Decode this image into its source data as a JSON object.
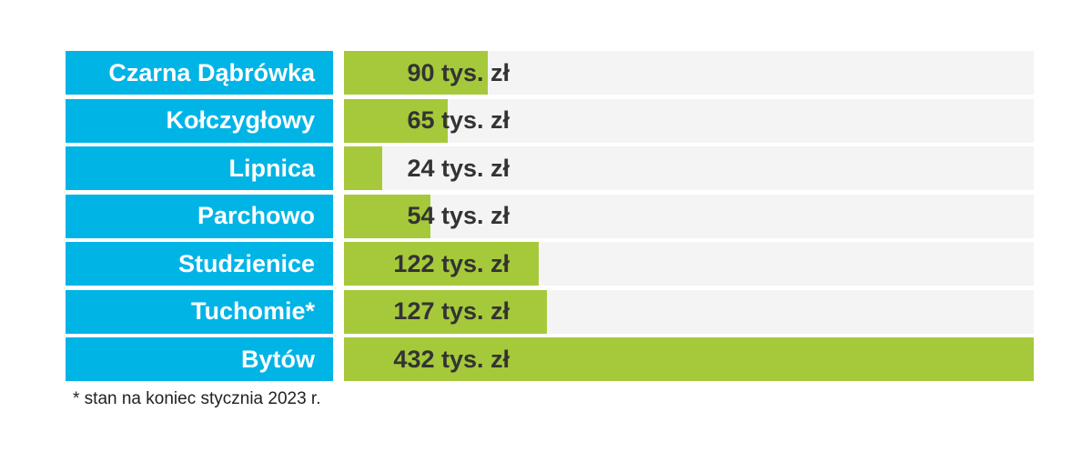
{
  "colors": {
    "category_box": "#00b4e6",
    "bar": "#a5c93a",
    "track": "#f4f4f4",
    "label_text": "#333333"
  },
  "chart_data": {
    "type": "bar",
    "orientation": "horizontal",
    "title": "",
    "xlabel": "",
    "ylabel": "",
    "xlim": [
      0,
      432
    ],
    "grid": false,
    "unit": "tys. zł",
    "categories": [
      "Czarna Dąbrówka",
      "Kołczygłowy",
      "Lipnica",
      "Parchowo",
      "Studzienice",
      "Tuchomie*",
      "Bytów"
    ],
    "values": [
      90,
      65,
      24,
      54,
      122,
      127,
      432
    ],
    "value_labels": [
      "90 tys. zł",
      "65 tys. zł",
      "24 tys. zł",
      "54 tys. zł",
      "122 tys. zł",
      "127 tys. zł",
      "432 tys. zł"
    ]
  },
  "footnote": "* stan na koniec stycznia 2023 r."
}
